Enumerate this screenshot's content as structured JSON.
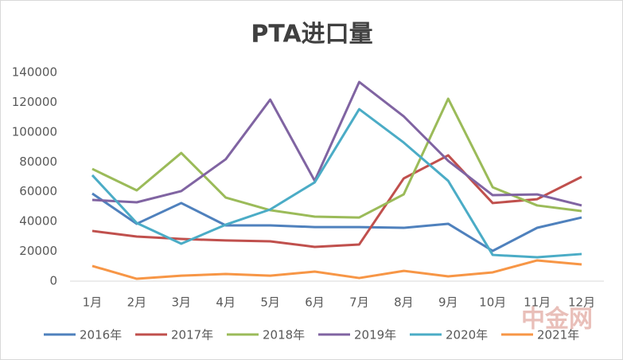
{
  "chart_data": {
    "type": "line",
    "title": "PTA进口量",
    "categories": [
      "1月",
      "2月",
      "3月",
      "4月",
      "5月",
      "6月",
      "7月",
      "8月",
      "9月",
      "10月",
      "11月",
      "12月"
    ],
    "series": [
      {
        "name": "2016年",
        "color": "#4f81bd",
        "values": [
          58800,
          38500,
          52400,
          37400,
          37400,
          36300,
          36300,
          35800,
          38500,
          20300,
          35800,
          42700
        ]
      },
      {
        "name": "2017年",
        "color": "#c0504d",
        "values": [
          33700,
          29900,
          28300,
          27300,
          26700,
          23000,
          24600,
          68900,
          84400,
          52400,
          55000,
          70000
        ]
      },
      {
        "name": "2018年",
        "color": "#9bbb59",
        "values": [
          75300,
          60900,
          86000,
          56100,
          47600,
          43300,
          42700,
          58200,
          122400,
          63000,
          50800,
          47000
        ]
      },
      {
        "name": "2019年",
        "color": "#8064a2",
        "values": [
          54500,
          52900,
          60400,
          81800,
          121800,
          67300,
          133600,
          110600,
          80700,
          57700,
          58200,
          50800
        ]
      },
      {
        "name": "2020年",
        "color": "#4bacc6",
        "values": [
          71100,
          39000,
          25100,
          37900,
          48100,
          66300,
          115400,
          93000,
          67300,
          17600,
          16000,
          18200
        ]
      },
      {
        "name": "2021年",
        "color": "#f79646",
        "values": [
          10200,
          1600,
          3700,
          4800,
          3700,
          6400,
          2100,
          6900,
          3200,
          5900,
          13900,
          11200
        ]
      }
    ],
    "ylim": [
      0,
      140000
    ],
    "yticks": [
      0,
      20000,
      40000,
      60000,
      80000,
      100000,
      120000,
      140000
    ],
    "grid": false,
    "legend": "bottom",
    "watermark": "中金网"
  }
}
